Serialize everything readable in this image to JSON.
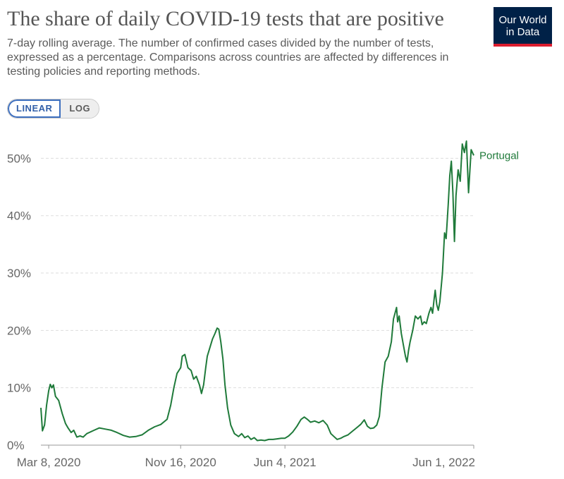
{
  "header": {
    "title": "The share of daily COVID-19 tests that are positive",
    "subtitle": "7-day rolling average. The number of confirmed cases divided by the number of tests, expressed as a percentage. Comparisons across countries are affected by differences in testing policies and reporting methods.",
    "logo_line1": "Our World",
    "logo_line2": "in Data"
  },
  "controls": {
    "linear_label": "LINEAR",
    "log_label": "LOG",
    "active": "LINEAR"
  },
  "colors": {
    "series": "#1f7a3a",
    "grid": "#dddddd",
    "axis": "#999999",
    "logo_bg": "#002147",
    "logo_accent": "#dc1c2e"
  },
  "chart_data": {
    "type": "line",
    "title": "The share of daily COVID-19 tests that are positive",
    "yunit": "%",
    "ylim": [
      0,
      53
    ],
    "y_ticks": [
      0,
      10,
      20,
      30,
      40,
      50
    ],
    "y_tick_labels": [
      "0%",
      "10%",
      "20%",
      "30%",
      "40%",
      "50%"
    ],
    "x_ticks": [
      "2020-03-08",
      "2020-11-16",
      "2021-06-04",
      "2022-06-01"
    ],
    "x_tick_labels": [
      "Mar 8, 2020",
      "Nov 16, 2020",
      "Jun 4, 2021",
      "Jun 1, 2022"
    ],
    "xlim": [
      "2020-02-22",
      "2022-06-01"
    ],
    "grid": "horizontal dashed",
    "series": [
      {
        "name": "Portugal",
        "color": "#1f7a3a",
        "points": [
          [
            "2020-02-22",
            6.5
          ],
          [
            "2020-02-25",
            2.5
          ],
          [
            "2020-02-29",
            3.5
          ],
          [
            "2020-03-04",
            7.0
          ],
          [
            "2020-03-08",
            9.5
          ],
          [
            "2020-03-11",
            10.6
          ],
          [
            "2020-03-14",
            10.0
          ],
          [
            "2020-03-17",
            10.5
          ],
          [
            "2020-03-21",
            8.5
          ],
          [
            "2020-03-27",
            7.8
          ],
          [
            "2020-04-03",
            5.5
          ],
          [
            "2020-04-09",
            3.8
          ],
          [
            "2020-04-14",
            3.0
          ],
          [
            "2020-04-20",
            2.2
          ],
          [
            "2020-04-25",
            2.6
          ],
          [
            "2020-05-01",
            1.4
          ],
          [
            "2020-05-07",
            1.6
          ],
          [
            "2020-05-13",
            1.4
          ],
          [
            "2020-05-20",
            2.0
          ],
          [
            "2020-06-03",
            2.6
          ],
          [
            "2020-06-13",
            3.0
          ],
          [
            "2020-06-24",
            2.8
          ],
          [
            "2020-07-06",
            2.6
          ],
          [
            "2020-07-17",
            2.2
          ],
          [
            "2020-07-29",
            1.7
          ],
          [
            "2020-08-10",
            1.4
          ],
          [
            "2020-08-22",
            1.5
          ],
          [
            "2020-09-03",
            1.8
          ],
          [
            "2020-09-15",
            2.6
          ],
          [
            "2020-09-27",
            3.2
          ],
          [
            "2020-10-09",
            3.6
          ],
          [
            "2020-10-21",
            4.5
          ],
          [
            "2020-10-28",
            7.0
          ],
          [
            "2020-11-03",
            10.0
          ],
          [
            "2020-11-09",
            12.5
          ],
          [
            "2020-11-16",
            13.5
          ],
          [
            "2020-11-19",
            15.5
          ],
          [
            "2020-11-24",
            15.8
          ],
          [
            "2020-11-30",
            13.5
          ],
          [
            "2020-12-06",
            13.0
          ],
          [
            "2020-12-11",
            11.5
          ],
          [
            "2020-12-16",
            12.0
          ],
          [
            "2020-12-22",
            10.5
          ],
          [
            "2020-12-26",
            9.0
          ],
          [
            "2020-12-30",
            10.5
          ],
          [
            "2021-01-03",
            13.5
          ],
          [
            "2021-01-06",
            15.5
          ],
          [
            "2021-01-11",
            17.0
          ],
          [
            "2021-01-16",
            18.5
          ],
          [
            "2021-01-21",
            19.5
          ],
          [
            "2021-01-25",
            20.4
          ],
          [
            "2021-01-28",
            20.2
          ],
          [
            "2021-02-01",
            18.0
          ],
          [
            "2021-02-05",
            15.0
          ],
          [
            "2021-02-09",
            10.5
          ],
          [
            "2021-02-14",
            6.5
          ],
          [
            "2021-02-20",
            3.5
          ],
          [
            "2021-02-27",
            2.0
          ],
          [
            "2021-03-07",
            1.5
          ],
          [
            "2021-03-13",
            2.0
          ],
          [
            "2021-03-19",
            1.3
          ],
          [
            "2021-03-25",
            1.6
          ],
          [
            "2021-03-31",
            1.0
          ],
          [
            "2021-04-06",
            1.3
          ],
          [
            "2021-04-12",
            0.8
          ],
          [
            "2021-04-19",
            0.9
          ],
          [
            "2021-04-26",
            0.8
          ],
          [
            "2021-05-04",
            1.0
          ],
          [
            "2021-05-12",
            1.0
          ],
          [
            "2021-05-20",
            1.1
          ],
          [
            "2021-05-28",
            1.2
          ],
          [
            "2021-06-04",
            1.2
          ],
          [
            "2021-06-11",
            1.6
          ],
          [
            "2021-06-19",
            2.3
          ],
          [
            "2021-06-27",
            3.3
          ],
          [
            "2021-07-05",
            4.5
          ],
          [
            "2021-07-11",
            4.9
          ],
          [
            "2021-07-17",
            4.5
          ],
          [
            "2021-07-23",
            4.0
          ],
          [
            "2021-07-31",
            4.2
          ],
          [
            "2021-08-08",
            3.9
          ],
          [
            "2021-08-16",
            4.3
          ],
          [
            "2021-08-24",
            3.5
          ],
          [
            "2021-08-31",
            2.0
          ],
          [
            "2021-09-06",
            1.5
          ],
          [
            "2021-09-12",
            1.0
          ],
          [
            "2021-09-19",
            1.2
          ],
          [
            "2021-09-25",
            1.5
          ],
          [
            "2021-10-03",
            1.8
          ],
          [
            "2021-10-11",
            2.4
          ],
          [
            "2021-10-19",
            3.0
          ],
          [
            "2021-10-27",
            3.6
          ],
          [
            "2021-11-03",
            4.4
          ],
          [
            "2021-11-09",
            3.3
          ],
          [
            "2021-11-15",
            2.9
          ],
          [
            "2021-11-21",
            3.0
          ],
          [
            "2021-11-27",
            3.5
          ],
          [
            "2021-12-02",
            5.0
          ],
          [
            "2021-12-07",
            10.0
          ],
          [
            "2021-12-13",
            14.5
          ],
          [
            "2021-12-19",
            15.5
          ],
          [
            "2021-12-25",
            18.0
          ],
          [
            "2021-12-29",
            22.0
          ],
          [
            "2022-01-01",
            23.0
          ],
          [
            "2022-01-04",
            24.0
          ],
          [
            "2022-01-06",
            21.5
          ],
          [
            "2022-01-09",
            22.5
          ],
          [
            "2022-01-13",
            19.5
          ],
          [
            "2022-01-17",
            17.5
          ],
          [
            "2022-01-21",
            15.5
          ],
          [
            "2022-01-24",
            14.5
          ],
          [
            "2022-01-27",
            16.5
          ],
          [
            "2022-01-30",
            18.0
          ],
          [
            "2022-02-04",
            20.0
          ],
          [
            "2022-02-09",
            22.5
          ],
          [
            "2022-02-14",
            22.0
          ],
          [
            "2022-02-19",
            22.5
          ],
          [
            "2022-02-22",
            21.0
          ],
          [
            "2022-02-26",
            21.5
          ],
          [
            "2022-03-02",
            21.2
          ],
          [
            "2022-03-07",
            23.0
          ],
          [
            "2022-03-11",
            24.0
          ],
          [
            "2022-03-14",
            23.0
          ],
          [
            "2022-03-17",
            25.5
          ],
          [
            "2022-03-19",
            27.0
          ],
          [
            "2022-03-22",
            24.5
          ],
          [
            "2022-03-25",
            23.5
          ],
          [
            "2022-03-28",
            25.0
          ],
          [
            "2022-04-02",
            30.0
          ],
          [
            "2022-04-06",
            37.0
          ],
          [
            "2022-04-09",
            36.0
          ],
          [
            "2022-04-13",
            42.0
          ],
          [
            "2022-04-16",
            47.0
          ],
          [
            "2022-04-19",
            49.5
          ],
          [
            "2022-04-22",
            44.0
          ],
          [
            "2022-04-25",
            35.5
          ],
          [
            "2022-04-28",
            43.5
          ],
          [
            "2022-05-02",
            48.0
          ],
          [
            "2022-05-06",
            46.0
          ],
          [
            "2022-05-10",
            52.5
          ],
          [
            "2022-05-14",
            51.0
          ],
          [
            "2022-05-18",
            53.0
          ],
          [
            "2022-05-22",
            44.0
          ],
          [
            "2022-05-27",
            51.5
          ],
          [
            "2022-06-01",
            50.5
          ]
        ]
      }
    ]
  }
}
